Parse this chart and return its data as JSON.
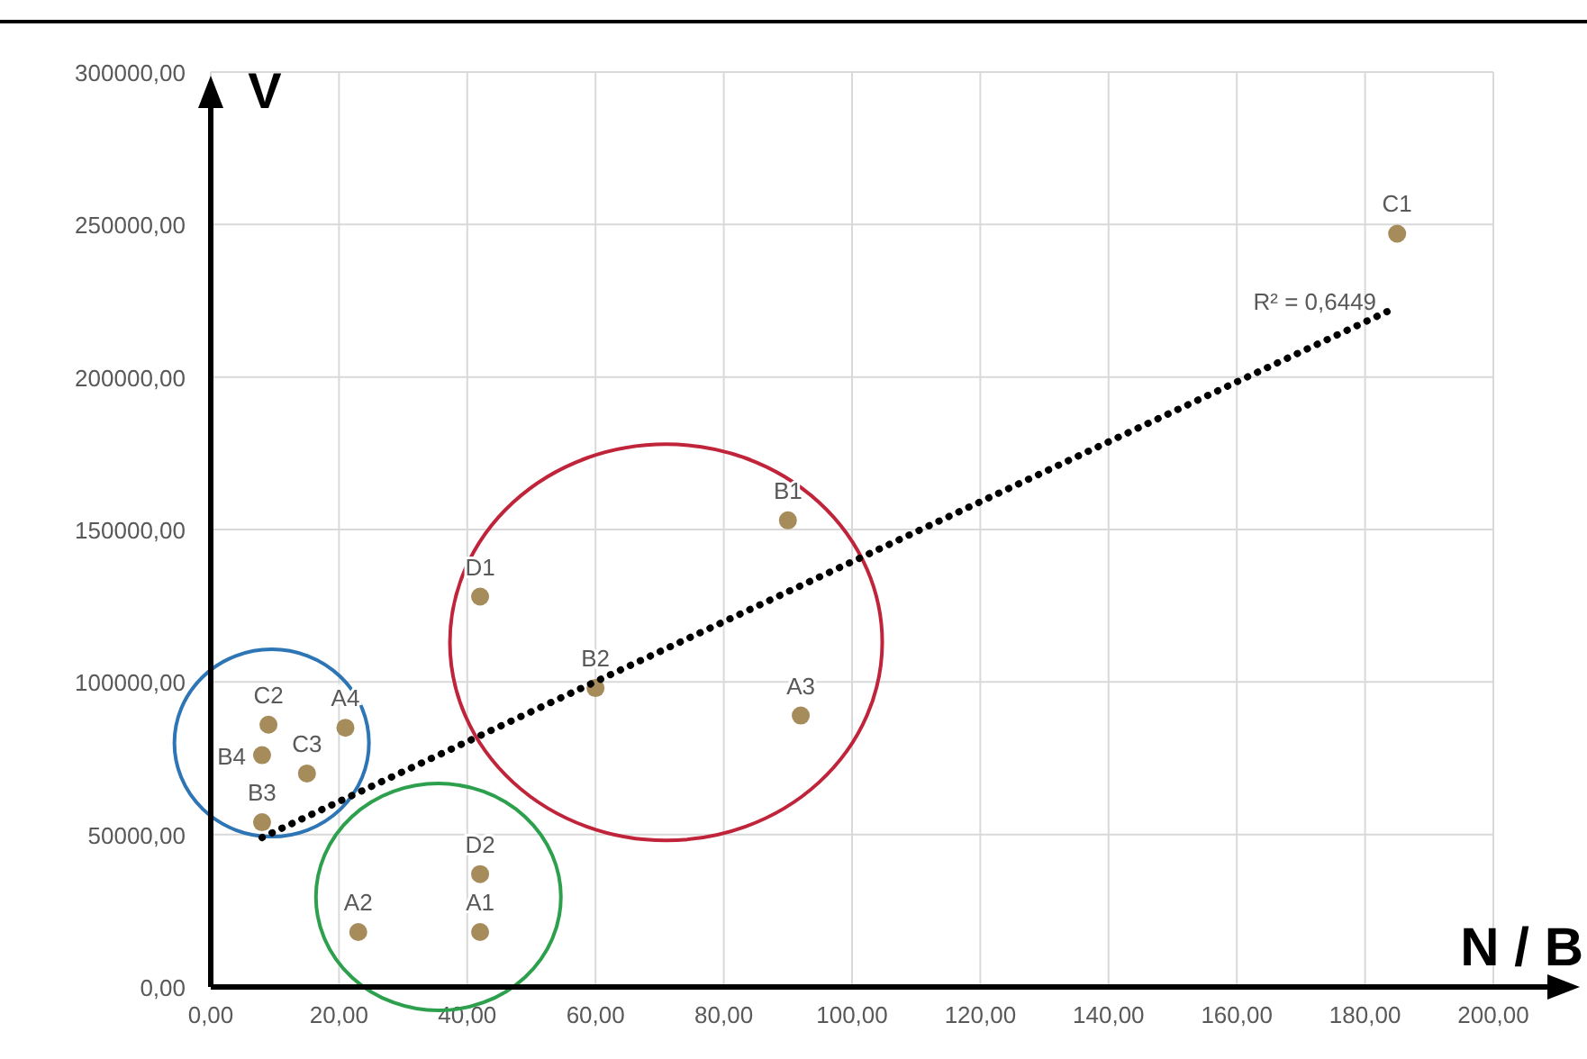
{
  "chart_data": {
    "type": "scatter",
    "xlabel": "N / B",
    "ylabel": "V",
    "xlim": [
      0,
      200
    ],
    "ylim": [
      0,
      300000
    ],
    "xticks": [
      {
        "value": 0,
        "label": "0,00"
      },
      {
        "value": 20,
        "label": "20,00"
      },
      {
        "value": 40,
        "label": "40,00"
      },
      {
        "value": 60,
        "label": "60,00"
      },
      {
        "value": 80,
        "label": "80,00"
      },
      {
        "value": 100,
        "label": "100,00"
      },
      {
        "value": 120,
        "label": "120,00"
      },
      {
        "value": 140,
        "label": "140,00"
      },
      {
        "value": 160,
        "label": "160,00"
      },
      {
        "value": 180,
        "label": "180,00"
      },
      {
        "value": 200,
        "label": "200,00"
      }
    ],
    "yticks": [
      {
        "value": 0,
        "label": "0,00"
      },
      {
        "value": 50000,
        "label": "50000,00"
      },
      {
        "value": 100000,
        "label": "100000,00"
      },
      {
        "value": 150000,
        "label": "150000,00"
      },
      {
        "value": 200000,
        "label": "200000,00"
      },
      {
        "value": 250000,
        "label": "250000,00"
      },
      {
        "value": 300000,
        "label": "300000,00"
      }
    ],
    "grid": true,
    "marker": "circle",
    "series": [
      {
        "color": "#a68b5b",
        "x": [
          185,
          90,
          42,
          60,
          92,
          42,
          42,
          23,
          9,
          21,
          8,
          15,
          8
        ],
        "values": [
          247000,
          153000,
          128000,
          98000,
          89000,
          37000,
          18000,
          18000,
          86000,
          85000,
          76000,
          70000,
          54000
        ]
      },
      {
        "type": "line",
        "color": "#000000",
        "line_style": "dotted",
        "marker": "none",
        "x": [
          8,
          184
        ],
        "values": [
          49000,
          222000
        ]
      }
    ],
    "annotations": [
      {
        "text": "C1",
        "x": 185,
        "y": 247000
      },
      {
        "text": "B1",
        "x": 90,
        "y": 153000
      },
      {
        "text": "D1",
        "x": 42,
        "y": 128000
      },
      {
        "text": "B2",
        "x": 60,
        "y": 98000
      },
      {
        "text": "A3",
        "x": 92,
        "y": 89000
      },
      {
        "text": "D2",
        "x": 42,
        "y": 37000
      },
      {
        "text": "A1",
        "x": 42,
        "y": 18000
      },
      {
        "text": "A2",
        "x": 23,
        "y": 18000
      },
      {
        "text": "C2",
        "x": 9,
        "y": 86000
      },
      {
        "text": "A4",
        "x": 21,
        "y": 85000
      },
      {
        "text": "B4",
        "x": 8,
        "y": 76000
      },
      {
        "text": "C3",
        "x": 15,
        "y": 70000
      },
      {
        "text": "B3",
        "x": 8,
        "y": 54000
      },
      {
        "text": "R² = 0,6449",
        "x": 184,
        "y": 222000
      }
    ]
  }
}
